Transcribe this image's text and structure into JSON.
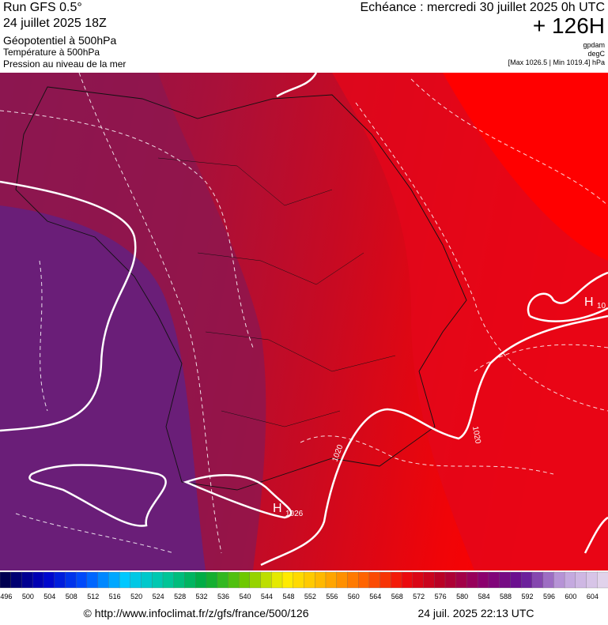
{
  "header": {
    "run": "Run GFS 0.5°",
    "date": "24 juillet 2025 18Z",
    "field1": "Géopotentiel à 500hPa",
    "field2": "Température à 500hPa",
    "field3": "Pression au niveau de la mer",
    "echeance": "Echéance : mercredi 30 juillet 2025 0h UTC",
    "offset": "+ 126H",
    "unit1": "gpdam",
    "unit2": "degC",
    "unit3": "[Max 1026.5 | Min 1019.4] hPa"
  },
  "map": {
    "labels": [
      {
        "text": "H",
        "sub": "1026"
      },
      {
        "text": "H",
        "sub": "10"
      },
      {
        "text": "1020"
      },
      {
        "text": "1020"
      }
    ]
  },
  "colorbar": {
    "labels": [
      496,
      500,
      504,
      508,
      512,
      516,
      520,
      524,
      528,
      532,
      536,
      540,
      544,
      548,
      552,
      556,
      560,
      564,
      568,
      572,
      576,
      580,
      584,
      588,
      592,
      596,
      600,
      604
    ]
  },
  "footer": {
    "source": "© http://www.infoclimat.fr/z/gfs/france/500/126",
    "timestamp": "24 juil. 2025 22:13 UTC"
  }
}
